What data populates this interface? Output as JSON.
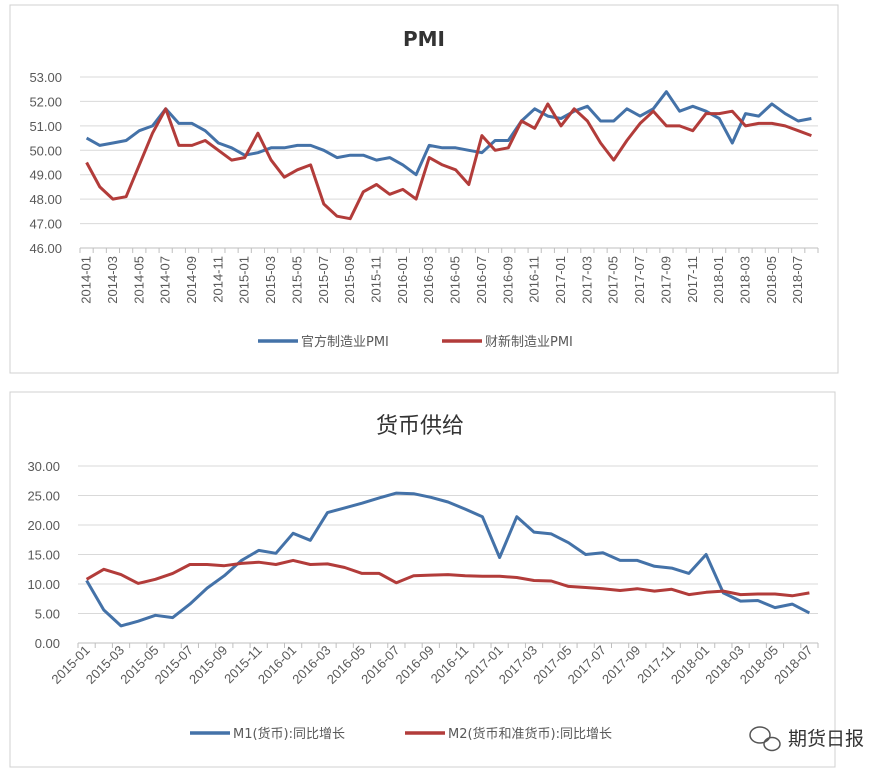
{
  "chart_data": [
    {
      "type": "line",
      "title": "PMI",
      "ylim": [
        46,
        53
      ],
      "ytick_step": 1,
      "ytick_format": "2 decimals",
      "grid": true,
      "legend": "bottom",
      "x_start": "2014-01",
      "x_label_every": 2,
      "x": [
        "2014-01",
        "2014-02",
        "2014-03",
        "2014-04",
        "2014-05",
        "2014-06",
        "2014-07",
        "2014-08",
        "2014-09",
        "2014-10",
        "2014-11",
        "2014-12",
        "2015-01",
        "2015-02",
        "2015-03",
        "2015-04",
        "2015-05",
        "2015-06",
        "2015-07",
        "2015-08",
        "2015-09",
        "2015-10",
        "2015-11",
        "2015-12",
        "2016-01",
        "2016-02",
        "2016-03",
        "2016-04",
        "2016-05",
        "2016-06",
        "2016-07",
        "2016-08",
        "2016-09",
        "2016-10",
        "2016-11",
        "2016-12",
        "2017-01",
        "2017-02",
        "2017-03",
        "2017-04",
        "2017-05",
        "2017-06",
        "2017-07",
        "2017-08",
        "2017-09",
        "2017-10",
        "2017-11",
        "2017-12",
        "2018-01",
        "2018-02",
        "2018-03",
        "2018-04",
        "2018-05",
        "2018-06",
        "2018-07",
        "2018-08"
      ],
      "series": [
        {
          "name": "官方制造业PMI",
          "color": "#4472a8",
          "values": [
            50.5,
            50.2,
            50.3,
            50.4,
            50.8,
            51.0,
            51.7,
            51.1,
            51.1,
            50.8,
            50.3,
            50.1,
            49.8,
            49.9,
            50.1,
            50.1,
            50.2,
            50.2,
            50.0,
            49.7,
            49.8,
            49.8,
            49.6,
            49.7,
            49.4,
            49.0,
            50.2,
            50.1,
            50.1,
            50.0,
            49.9,
            50.4,
            50.4,
            51.2,
            51.7,
            51.4,
            51.3,
            51.6,
            51.8,
            51.2,
            51.2,
            51.7,
            51.4,
            51.7,
            52.4,
            51.6,
            51.8,
            51.6,
            51.3,
            50.3,
            51.5,
            51.4,
            51.9,
            51.5,
            51.2,
            51.3
          ]
        },
        {
          "name": "财新制造业PMI",
          "color": "#b23c3a",
          "values": [
            49.5,
            48.5,
            48.0,
            48.1,
            49.4,
            50.7,
            51.7,
            50.2,
            50.2,
            50.4,
            50.0,
            49.6,
            49.7,
            50.7,
            49.6,
            48.9,
            49.2,
            49.4,
            47.8,
            47.3,
            47.2,
            48.3,
            48.6,
            48.2,
            48.4,
            48.0,
            49.7,
            49.4,
            49.2,
            48.6,
            50.6,
            50.0,
            50.1,
            51.2,
            50.9,
            51.9,
            51.0,
            51.7,
            51.2,
            50.3,
            49.6,
            50.4,
            51.1,
            51.6,
            51.0,
            51.0,
            50.8,
            51.5,
            51.5,
            51.6,
            51.0,
            51.1,
            51.1,
            51.0,
            50.8,
            50.6
          ]
        }
      ]
    },
    {
      "type": "line",
      "title": "货币供给",
      "ylim": [
        0,
        30
      ],
      "ytick_step": 5,
      "ytick_format": "2 decimals",
      "grid": true,
      "legend": "bottom",
      "x_label_every": 2,
      "x": [
        "2015-01",
        "2015-02",
        "2015-03",
        "2015-04",
        "2015-05",
        "2015-06",
        "2015-07",
        "2015-08",
        "2015-09",
        "2015-10",
        "2015-11",
        "2015-12",
        "2016-01",
        "2016-02",
        "2016-03",
        "2016-04",
        "2016-05",
        "2016-06",
        "2016-07",
        "2016-08",
        "2016-09",
        "2016-10",
        "2016-11",
        "2016-12",
        "2017-01",
        "2017-02",
        "2017-03",
        "2017-04",
        "2017-05",
        "2017-06",
        "2017-07",
        "2017-08",
        "2017-09",
        "2017-10",
        "2017-11",
        "2017-12",
        "2018-01",
        "2018-02",
        "2018-03",
        "2018-04",
        "2018-05",
        "2018-06",
        "2018-07"
      ],
      "series": [
        {
          "name": "M1(货币):同比增长",
          "color": "#4472a8",
          "values": [
            10.6,
            5.6,
            2.9,
            3.7,
            4.7,
            4.3,
            6.6,
            9.3,
            11.4,
            14.0,
            15.7,
            15.2,
            18.6,
            17.4,
            22.1,
            22.9,
            23.7,
            24.6,
            25.4,
            25.3,
            24.7,
            23.9,
            22.7,
            21.4,
            14.5,
            21.4,
            18.8,
            18.5,
            17.0,
            15.0,
            15.3,
            14.0,
            14.0,
            13.0,
            12.7,
            11.8,
            15.0,
            8.5,
            7.1,
            7.2,
            6.0,
            6.6,
            5.1
          ]
        },
        {
          "name": "M2(货币和准货币):同比增长",
          "color": "#b23c3a",
          "values": [
            10.8,
            12.5,
            11.6,
            10.1,
            10.8,
            11.8,
            13.3,
            13.3,
            13.1,
            13.5,
            13.7,
            13.3,
            14.0,
            13.3,
            13.4,
            12.8,
            11.8,
            11.8,
            10.2,
            11.4,
            11.5,
            11.6,
            11.4,
            11.3,
            11.3,
            11.1,
            10.6,
            10.5,
            9.6,
            9.4,
            9.2,
            8.9,
            9.2,
            8.8,
            9.1,
            8.2,
            8.6,
            8.8,
            8.2,
            8.3,
            8.3,
            8.0,
            8.5
          ]
        }
      ]
    }
  ],
  "watermark": {
    "text": "期货日报",
    "icon": "wechat-icon"
  }
}
